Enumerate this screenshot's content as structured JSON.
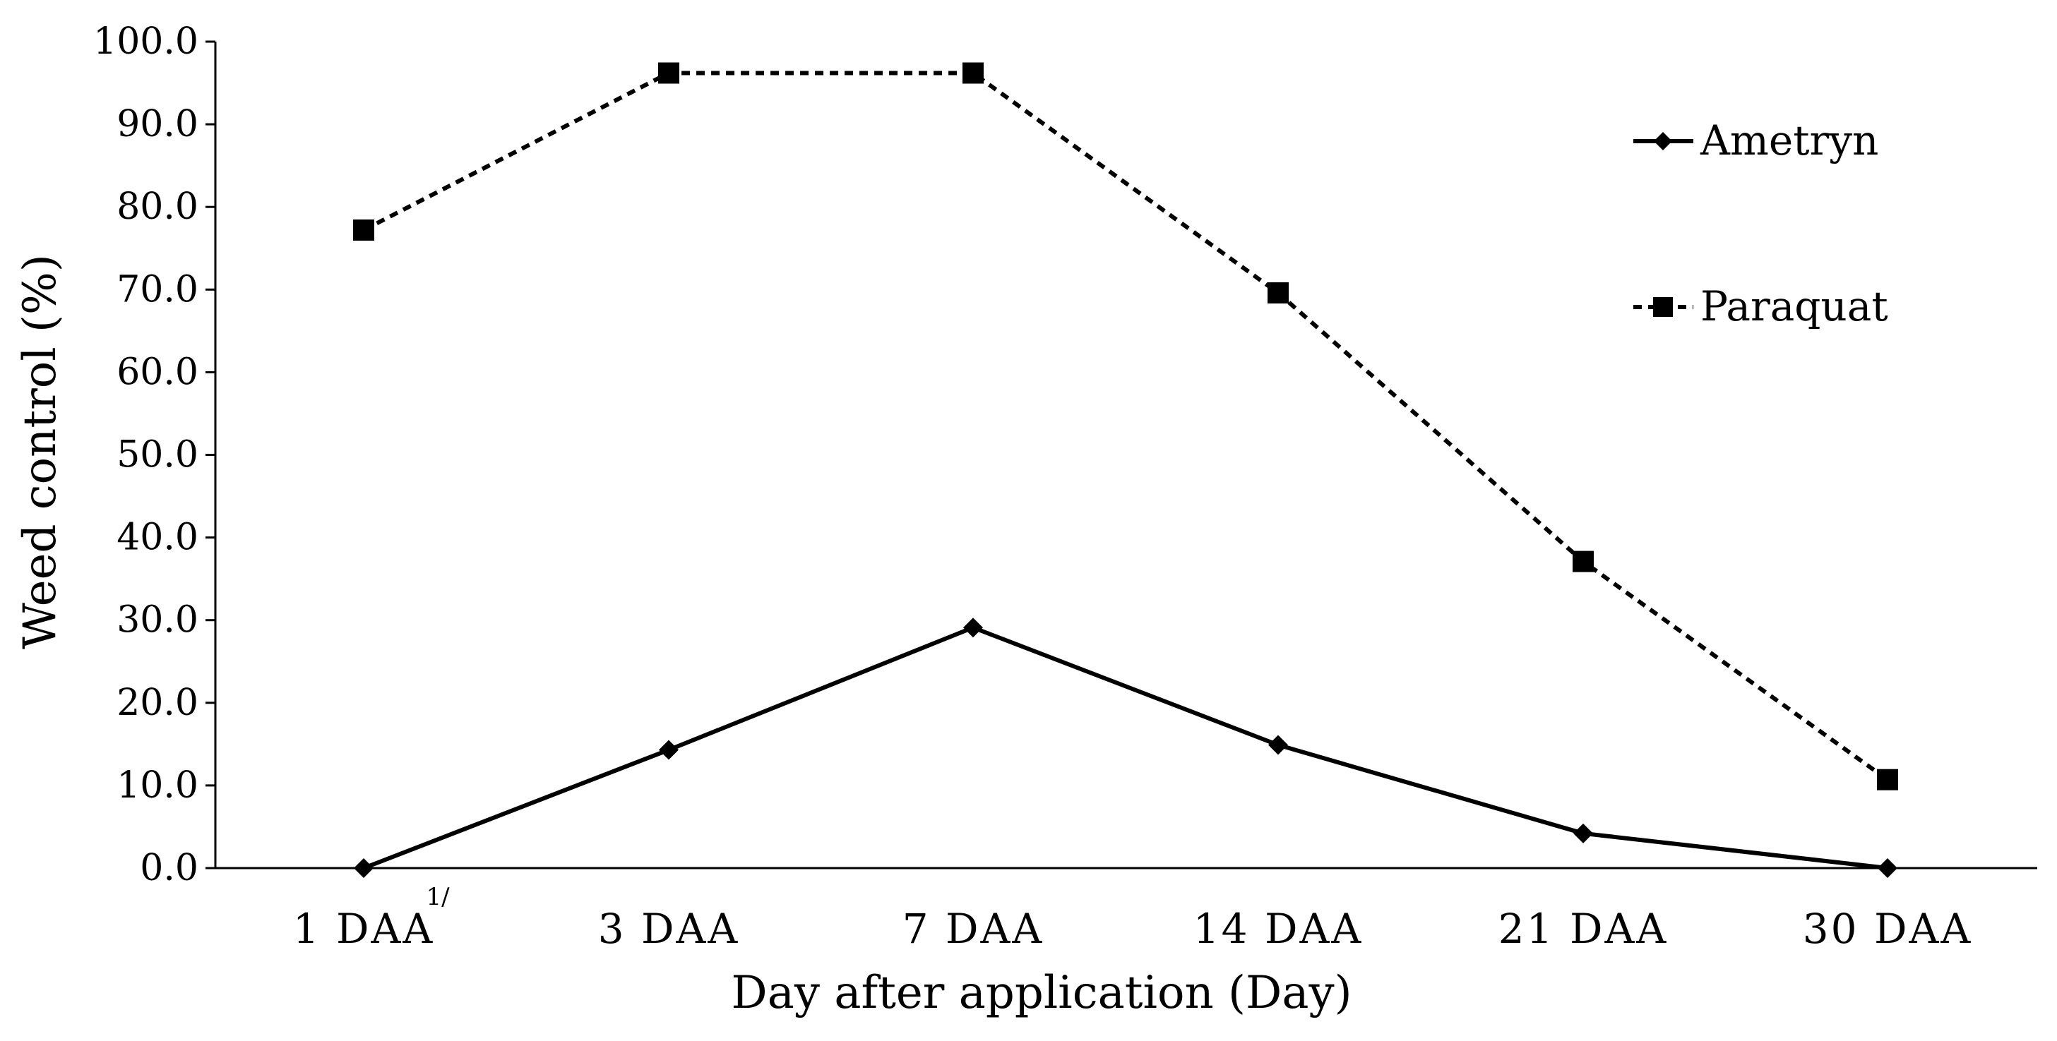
{
  "chart_data": {
    "type": "line",
    "categories": [
      "1 DAA",
      "3 DAA",
      "7 DAA",
      "14 DAA",
      "21 DAA",
      "30 DAA"
    ],
    "series": [
      {
        "name": "Ametryn",
        "values": [
          0.0,
          14.3,
          29.1,
          14.9,
          4.2,
          0.0
        ],
        "line": "solid",
        "marker": "diamond",
        "color": "#000000"
      },
      {
        "name": "Paraquat",
        "values": [
          77.2,
          96.2,
          96.2,
          69.6,
          37.1,
          10.7
        ],
        "line": "dashed",
        "marker": "square",
        "color": "#000000"
      }
    ],
    "xlabel": "Day after application (Day)",
    "ylabel": "Weed control (%)",
    "ylim": [
      0,
      100
    ],
    "yticks": [
      "0.0",
      "10.0",
      "20.0",
      "30.0",
      "40.0",
      "50.0",
      "60.0",
      "70.0",
      "80.0",
      "90.0",
      "100.0"
    ],
    "footnote_mark": "1/",
    "legend_position": "top-right",
    "grid": false
  }
}
